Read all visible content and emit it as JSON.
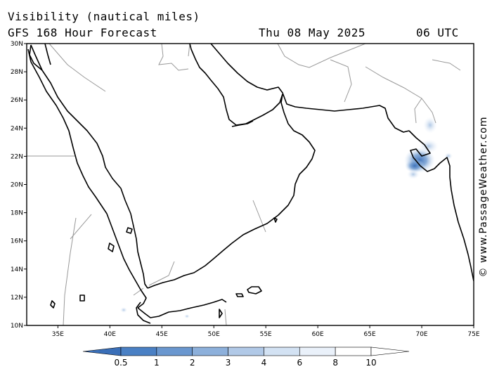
{
  "header": {
    "title": "Visibility (nautical miles)",
    "subtitle": "GFS 168 Hour Forecast",
    "date": "Thu 08 May 2025",
    "time": "06 UTC"
  },
  "credit": "© www.PassageWeather.com",
  "map": {
    "lat_labels": [
      "30N",
      "28N",
      "26N",
      "24N",
      "22N",
      "20N",
      "18N",
      "16N",
      "14N",
      "12N",
      "10N"
    ],
    "lon_labels": [
      "35E",
      "40E",
      "45E",
      "50E",
      "55E",
      "60E",
      "65E",
      "70E",
      "75E"
    ],
    "lat_range": [
      10,
      30
    ],
    "lon_range": [
      32,
      75
    ],
    "coast_color": "#000000",
    "border_color": "#999999",
    "visibility_patch": {
      "lat": 21.8,
      "lon": 69.5,
      "min_visibility_nm": 0.5
    }
  },
  "colorbar": {
    "labels": [
      "0.5",
      "1",
      "2",
      "3",
      "4",
      "6",
      "8",
      "10"
    ],
    "colors": [
      "#3a6fb8",
      "#4a80c4",
      "#6a97cf",
      "#8db0db",
      "#b1c9e7",
      "#d3e2f3",
      "#eaf1fa",
      "#ffffff"
    ]
  }
}
